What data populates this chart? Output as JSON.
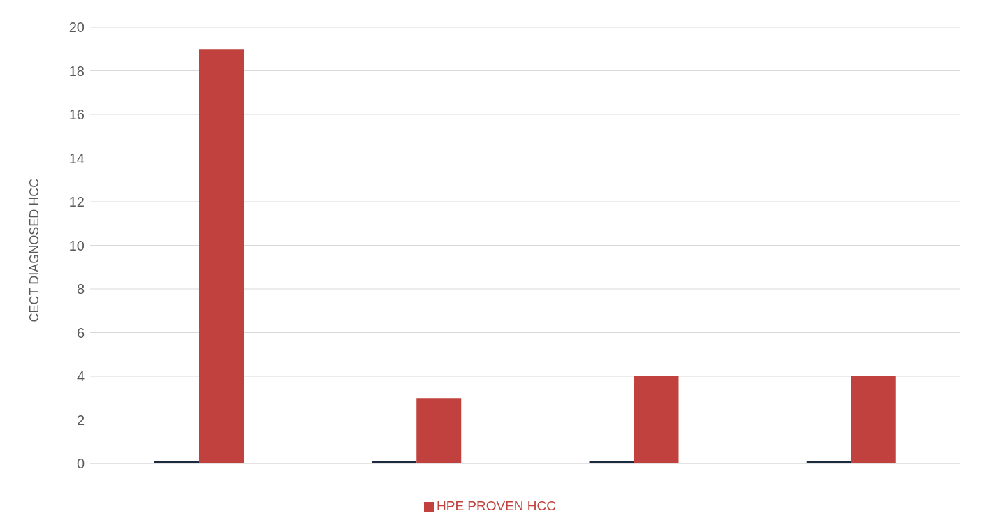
{
  "chart_data": {
    "type": "bar",
    "ylabel": "CECT DIAGNOSED HCC",
    "categories": [
      null,
      null,
      null,
      null
    ],
    "series": [
      {
        "color": "#1b2a3f",
        "values": [
          0,
          0,
          0,
          0
        ]
      },
      {
        "name": "HPE PROVEN HCC",
        "color": "#c0413d",
        "values": [
          19,
          3,
          4,
          4
        ]
      }
    ],
    "ylim": [
      0,
      20
    ],
    "yticks": [
      0,
      2,
      4,
      6,
      8,
      10,
      12,
      14,
      16,
      18,
      20
    ],
    "grid": "y",
    "legend": "bottom"
  }
}
